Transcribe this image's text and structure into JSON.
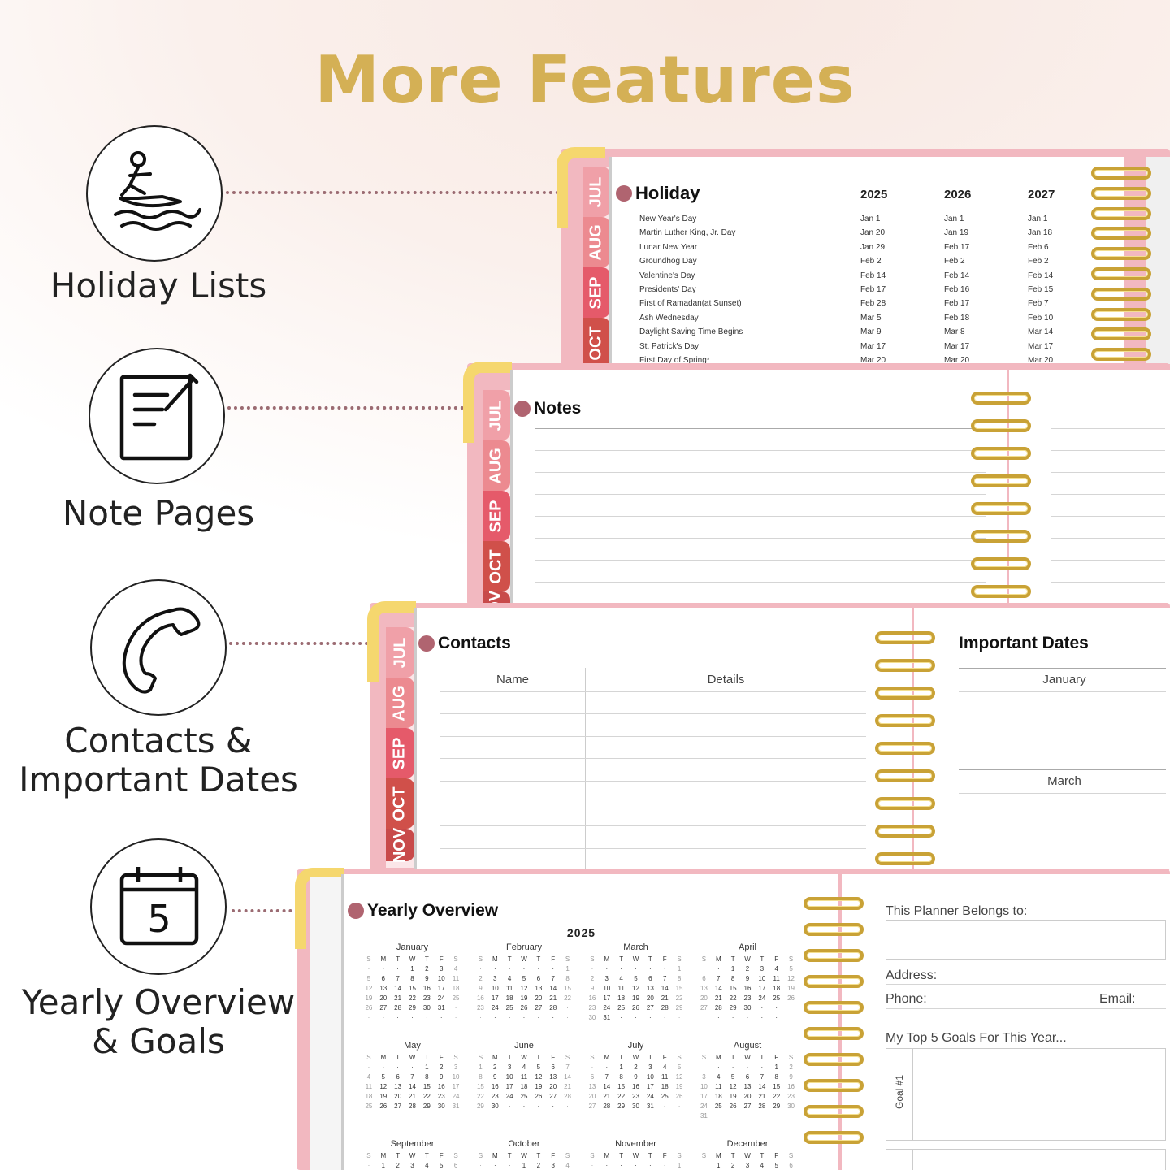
{
  "title": "More Features",
  "features": [
    {
      "label": "Holiday Lists",
      "icon": "jet-ski-icon"
    },
    {
      "label": "Note Pages",
      "icon": "notepad-icon"
    },
    {
      "label": "Contacts & Important Dates",
      "label_lines": [
        "Contacts &",
        "Important Dates"
      ],
      "icon": "phone-icon"
    },
    {
      "label": "Yearly Overview & Goals",
      "label_lines": [
        "Yearly Overview",
        "& Goals"
      ],
      "icon": "calendar-icon",
      "icon_text": "5"
    }
  ],
  "tabs": [
    "JUL",
    "AUG",
    "SEP",
    "OCT",
    "NOV"
  ],
  "colors": {
    "title_gold": "#d4b055",
    "cover_pink": "#f2b8c0",
    "bullet": "#b06470",
    "ring_gold": "#c9a236",
    "tab_jul": "#f0a0a8",
    "tab_aug": "#ec8a90",
    "tab_sep": "#e55a6a",
    "tab_oct": "#d0504a",
    "tab_nov": "#c84a4a"
  },
  "holiday": {
    "heading": "Holiday",
    "years": [
      "2025",
      "2026",
      "2027"
    ],
    "rows": [
      {
        "name": "New Year's Day",
        "dates": [
          "Jan 1",
          "Jan 1",
          "Jan 1"
        ]
      },
      {
        "name": "Martin Luther King, Jr. Day",
        "dates": [
          "Jan 20",
          "Jan 19",
          "Jan 18"
        ]
      },
      {
        "name": "Lunar New Year",
        "dates": [
          "Jan 29",
          "Feb 17",
          "Feb 6"
        ]
      },
      {
        "name": "Groundhog Day",
        "dates": [
          "Feb 2",
          "Feb 2",
          "Feb 2"
        ]
      },
      {
        "name": "Valentine's Day",
        "dates": [
          "Feb 14",
          "Feb 14",
          "Feb 14"
        ]
      },
      {
        "name": "Presidents' Day",
        "dates": [
          "Feb 17",
          "Feb 16",
          "Feb 15"
        ]
      },
      {
        "name": "First of Ramadan(at Sunset)",
        "dates": [
          "Feb 28",
          "Feb 17",
          "Feb 7"
        ]
      },
      {
        "name": "Ash Wednesday",
        "dates": [
          "Mar 5",
          "Feb 18",
          "Feb 10"
        ]
      },
      {
        "name": "Daylight Saving Time Begins",
        "dates": [
          "Mar 9",
          "Mar 8",
          "Mar 14"
        ]
      },
      {
        "name": "St. Patrick's Day",
        "dates": [
          "Mar 17",
          "Mar 17",
          "Mar 17"
        ]
      },
      {
        "name": "First Day of Spring*",
        "dates": [
          "Mar 20",
          "Mar 20",
          "Mar 20"
        ]
      }
    ]
  },
  "notes": {
    "heading": "Notes"
  },
  "contacts": {
    "heading": "Contacts",
    "columns": [
      "Name",
      "Details"
    ]
  },
  "important_dates": {
    "heading": "Important Dates",
    "months": [
      "January",
      "March"
    ]
  },
  "yearly": {
    "heading": "Yearly Overview",
    "year": "2025",
    "weekdays": [
      "S",
      "M",
      "T",
      "W",
      "T",
      "F",
      "S"
    ],
    "months": [
      {
        "name": "January",
        "first_weekday": 3,
        "days": 31
      },
      {
        "name": "February",
        "first_weekday": 6,
        "days": 28
      },
      {
        "name": "March",
        "first_weekday": 6,
        "days": 31
      },
      {
        "name": "April",
        "first_weekday": 2,
        "days": 30
      },
      {
        "name": "May",
        "first_weekday": 4,
        "days": 31
      },
      {
        "name": "June",
        "first_weekday": 0,
        "days": 30
      },
      {
        "name": "July",
        "first_weekday": 2,
        "days": 31
      },
      {
        "name": "August",
        "first_weekday": 5,
        "days": 31
      },
      {
        "name": "September",
        "first_weekday": 1,
        "days": 30
      },
      {
        "name": "October",
        "first_weekday": 3,
        "days": 31
      },
      {
        "name": "November",
        "first_weekday": 6,
        "days": 30
      },
      {
        "name": "December",
        "first_weekday": 1,
        "days": 31
      }
    ]
  },
  "goals": {
    "belongs": "This Planner Belongs to:",
    "address": "Address:",
    "phone": "Phone:",
    "email": "Email:",
    "top5": "My Top 5 Goals For This Year...",
    "goal1": "Goal #1"
  }
}
